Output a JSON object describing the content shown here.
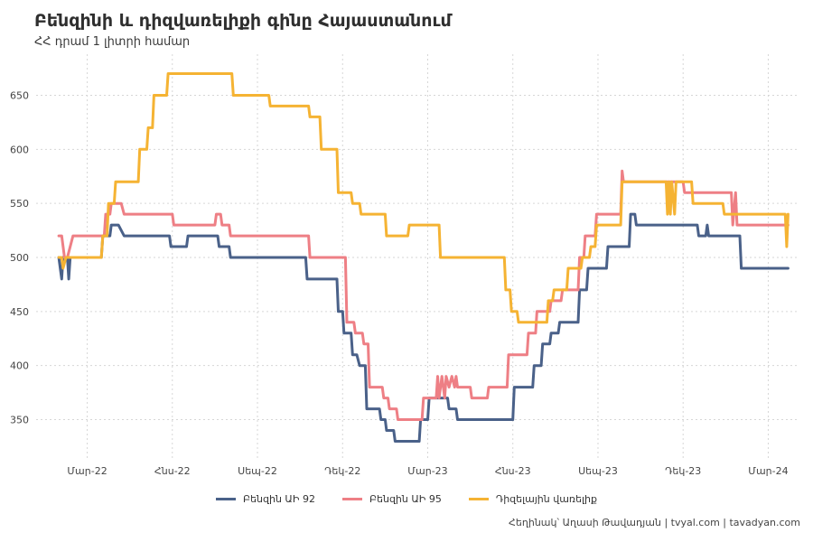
{
  "title": "Բենզինի և դիզվառելիքի գինը Հայաստանում",
  "subtitle": "ՀՀ դրամ 1 լիտրի համար",
  "caption": "Հեղինակ՝ Աղասի Թավադյան  |  tvyal.com  |  tavadyan.com",
  "chart_data": {
    "type": "line",
    "title": "Բենզինի և դիզվառելիքի գինը Հայաստանում",
    "subtitle": "ՀՀ դրամ 1 լիտրի համար",
    "x_unit": "months since Jan 2022",
    "xlim": [
      0.2,
      27.1
    ],
    "ylim": [
      312,
      688
    ],
    "y_ticks": [
      350,
      400,
      450,
      500,
      550,
      600,
      650
    ],
    "x_ticks": [
      {
        "x": 2,
        "label": "Մար-22"
      },
      {
        "x": 5,
        "label": "Հնս-22"
      },
      {
        "x": 8,
        "label": "Սեպ-22"
      },
      {
        "x": 11,
        "label": "Դեկ-22"
      },
      {
        "x": 14,
        "label": "Մար-23"
      },
      {
        "x": 17,
        "label": "Հնս-23"
      },
      {
        "x": 20,
        "label": "Սեպ-23"
      },
      {
        "x": 23,
        "label": "Դեկ-23"
      },
      {
        "x": 26,
        "label": "Մար-24"
      }
    ],
    "grid": true,
    "legend_position": "bottom",
    "series": [
      {
        "name": "Բենզին ԱԻ 92",
        "color": "#4a6189",
        "points": [
          [
            1,
            500
          ],
          [
            1.05,
            490
          ],
          [
            1.1,
            480
          ],
          [
            1.15,
            500
          ],
          [
            1.3,
            500
          ],
          [
            1.35,
            480
          ],
          [
            1.4,
            500
          ],
          [
            2.5,
            500
          ],
          [
            2.55,
            520
          ],
          [
            2.8,
            520
          ],
          [
            2.85,
            530
          ],
          [
            3.1,
            530
          ],
          [
            3.3,
            520
          ],
          [
            4.9,
            520
          ],
          [
            4.95,
            510
          ],
          [
            5.5,
            510
          ],
          [
            5.55,
            520
          ],
          [
            6.6,
            520
          ],
          [
            6.65,
            510
          ],
          [
            7,
            510
          ],
          [
            7.05,
            500
          ],
          [
            9.7,
            500
          ],
          [
            9.75,
            480
          ],
          [
            10.8,
            480
          ],
          [
            10.85,
            450
          ],
          [
            11,
            450
          ],
          [
            11.05,
            430
          ],
          [
            11.3,
            430
          ],
          [
            11.35,
            410
          ],
          [
            11.5,
            410
          ],
          [
            11.6,
            400
          ],
          [
            11.8,
            400
          ],
          [
            11.85,
            360
          ],
          [
            12.3,
            360
          ],
          [
            12.35,
            350
          ],
          [
            12.5,
            350
          ],
          [
            12.55,
            340
          ],
          [
            12.8,
            340
          ],
          [
            12.85,
            330
          ],
          [
            13.7,
            330
          ],
          [
            13.75,
            350
          ],
          [
            14,
            350
          ],
          [
            14.05,
            370
          ],
          [
            14.7,
            370
          ],
          [
            14.75,
            360
          ],
          [
            15,
            360
          ],
          [
            15.05,
            350
          ],
          [
            17,
            350
          ],
          [
            17.05,
            380
          ],
          [
            17.7,
            380
          ],
          [
            17.75,
            400
          ],
          [
            18,
            400
          ],
          [
            18.05,
            420
          ],
          [
            18.3,
            420
          ],
          [
            18.35,
            430
          ],
          [
            18.6,
            430
          ],
          [
            18.65,
            440
          ],
          [
            19.3,
            440
          ],
          [
            19.35,
            470
          ],
          [
            19.6,
            470
          ],
          [
            19.65,
            490
          ],
          [
            20.3,
            490
          ],
          [
            20.35,
            510
          ],
          [
            21.1,
            510
          ],
          [
            21.15,
            540
          ],
          [
            21.3,
            540
          ],
          [
            21.35,
            530
          ],
          [
            23.5,
            530
          ],
          [
            23.55,
            520
          ],
          [
            23.8,
            520
          ],
          [
            23.85,
            530
          ],
          [
            23.9,
            520
          ],
          [
            25,
            520
          ],
          [
            25.05,
            490
          ],
          [
            26.7,
            490
          ]
        ]
      },
      {
        "name": "Բենզին ԱԻ 95",
        "color": "#ee7f85",
        "points": [
          [
            1,
            520
          ],
          [
            1.1,
            520
          ],
          [
            1.2,
            500
          ],
          [
            1.3,
            500
          ],
          [
            1.5,
            520
          ],
          [
            2.6,
            520
          ],
          [
            2.65,
            540
          ],
          [
            2.8,
            540
          ],
          [
            2.85,
            550
          ],
          [
            3.2,
            550
          ],
          [
            3.3,
            540
          ],
          [
            5,
            540
          ],
          [
            5.05,
            530
          ],
          [
            6.5,
            530
          ],
          [
            6.55,
            540
          ],
          [
            6.7,
            540
          ],
          [
            6.75,
            530
          ],
          [
            7,
            530
          ],
          [
            7.05,
            520
          ],
          [
            9.8,
            520
          ],
          [
            9.85,
            500
          ],
          [
            11.1,
            500
          ],
          [
            11.15,
            440
          ],
          [
            11.4,
            440
          ],
          [
            11.45,
            430
          ],
          [
            11.7,
            430
          ],
          [
            11.75,
            420
          ],
          [
            11.9,
            420
          ],
          [
            11.95,
            380
          ],
          [
            12.4,
            380
          ],
          [
            12.45,
            370
          ],
          [
            12.6,
            370
          ],
          [
            12.65,
            360
          ],
          [
            12.9,
            360
          ],
          [
            12.95,
            350
          ],
          [
            13.8,
            350
          ],
          [
            13.85,
            370
          ],
          [
            14.3,
            370
          ],
          [
            14.35,
            390
          ],
          [
            14.4,
            370
          ],
          [
            14.5,
            390
          ],
          [
            14.6,
            370
          ],
          [
            14.65,
            390
          ],
          [
            14.75,
            380
          ],
          [
            14.85,
            390
          ],
          [
            14.95,
            380
          ],
          [
            15,
            390
          ],
          [
            15.05,
            380
          ],
          [
            15.5,
            380
          ],
          [
            15.55,
            370
          ],
          [
            16.1,
            370
          ],
          [
            16.15,
            380
          ],
          [
            16.8,
            380
          ],
          [
            16.85,
            410
          ],
          [
            17.5,
            410
          ],
          [
            17.55,
            430
          ],
          [
            17.8,
            430
          ],
          [
            17.85,
            450
          ],
          [
            18.3,
            450
          ],
          [
            18.35,
            460
          ],
          [
            18.7,
            460
          ],
          [
            18.75,
            470
          ],
          [
            19.3,
            470
          ],
          [
            19.35,
            500
          ],
          [
            19.5,
            500
          ],
          [
            19.55,
            520
          ],
          [
            19.9,
            520
          ],
          [
            19.95,
            540
          ],
          [
            20.8,
            540
          ],
          [
            20.85,
            580
          ],
          [
            20.9,
            570
          ],
          [
            23,
            570
          ],
          [
            23.05,
            560
          ],
          [
            24.7,
            560
          ],
          [
            24.75,
            530
          ],
          [
            24.85,
            560
          ],
          [
            24.9,
            530
          ],
          [
            26.7,
            530
          ]
        ]
      },
      {
        "name": "Դիզելային վառելիք",
        "color": "#f5b333",
        "points": [
          [
            1,
            500
          ],
          [
            1.1,
            500
          ],
          [
            1.15,
            490
          ],
          [
            1.25,
            500
          ],
          [
            2.5,
            500
          ],
          [
            2.55,
            520
          ],
          [
            2.7,
            520
          ],
          [
            2.75,
            550
          ],
          [
            2.95,
            550
          ],
          [
            3,
            570
          ],
          [
            3.8,
            570
          ],
          [
            3.85,
            600
          ],
          [
            4.1,
            600
          ],
          [
            4.15,
            620
          ],
          [
            4.3,
            620
          ],
          [
            4.35,
            650
          ],
          [
            4.8,
            650
          ],
          [
            4.85,
            670
          ],
          [
            7.1,
            670
          ],
          [
            7.15,
            650
          ],
          [
            8.4,
            650
          ],
          [
            8.45,
            640
          ],
          [
            9.8,
            640
          ],
          [
            9.85,
            630
          ],
          [
            10.2,
            630
          ],
          [
            10.25,
            600
          ],
          [
            10.8,
            600
          ],
          [
            10.85,
            560
          ],
          [
            11.3,
            560
          ],
          [
            11.35,
            550
          ],
          [
            11.6,
            550
          ],
          [
            11.65,
            540
          ],
          [
            12.5,
            540
          ],
          [
            12.55,
            520
          ],
          [
            13.3,
            520
          ],
          [
            13.35,
            530
          ],
          [
            14.4,
            530
          ],
          [
            14.45,
            500
          ],
          [
            16.7,
            500
          ],
          [
            16.75,
            470
          ],
          [
            16.9,
            470
          ],
          [
            16.95,
            450
          ],
          [
            17.15,
            450
          ],
          [
            17.2,
            440
          ],
          [
            18.2,
            440
          ],
          [
            18.25,
            460
          ],
          [
            18.4,
            460
          ],
          [
            18.45,
            470
          ],
          [
            18.9,
            470
          ],
          [
            18.95,
            490
          ],
          [
            19.4,
            490
          ],
          [
            19.45,
            500
          ],
          [
            19.7,
            500
          ],
          [
            19.75,
            510
          ],
          [
            19.9,
            510
          ],
          [
            19.95,
            530
          ],
          [
            20.8,
            530
          ],
          [
            20.85,
            570
          ],
          [
            22.4,
            570
          ],
          [
            22.45,
            540
          ],
          [
            22.5,
            570
          ],
          [
            22.55,
            540
          ],
          [
            22.6,
            570
          ],
          [
            22.7,
            540
          ],
          [
            22.75,
            570
          ],
          [
            23.3,
            570
          ],
          [
            23.35,
            550
          ],
          [
            24.4,
            550
          ],
          [
            24.45,
            540
          ],
          [
            26.6,
            540
          ],
          [
            26.65,
            510
          ],
          [
            26.7,
            540
          ]
        ]
      }
    ]
  }
}
